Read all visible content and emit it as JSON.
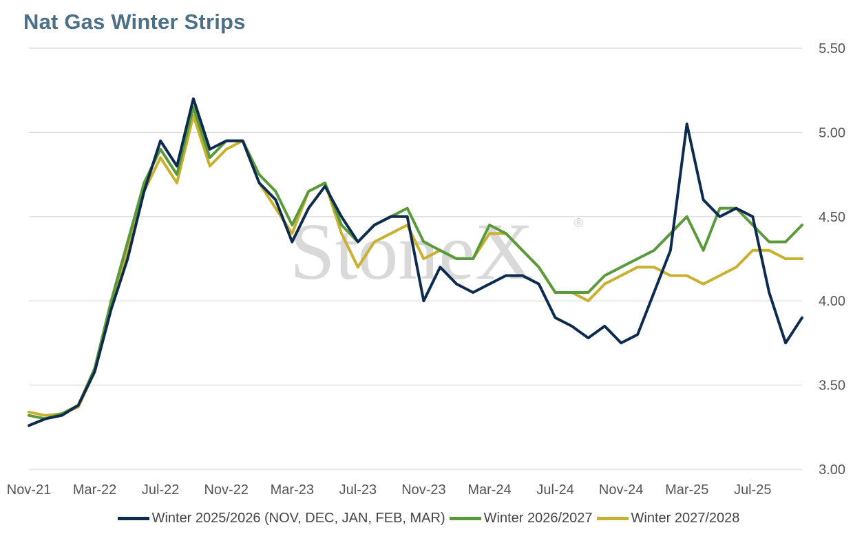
{
  "title": "Nat Gas Winter Strips",
  "watermark": "StoneX",
  "watermark_mark": "®",
  "colors": {
    "series_0": "#0d2b4e",
    "series_1": "#5b9a3c",
    "series_2": "#c8b030",
    "grid": "#d9d9d9",
    "title": "#4c7088"
  },
  "chart_data": {
    "type": "line",
    "title": "Nat Gas Winter Strips",
    "xlabel": "",
    "ylabel": "",
    "ylim": [
      3.0,
      5.5
    ],
    "y_ticks": [
      "3.00",
      "3.50",
      "4.00",
      "4.50",
      "5.00",
      "5.50"
    ],
    "y_axis_side": "right",
    "x_ticks": [
      "Nov-21",
      "Mar-22",
      "Jul-22",
      "Nov-22",
      "Mar-23",
      "Jul-23",
      "Nov-23",
      "Mar-24",
      "Jul-24",
      "Nov-24",
      "Mar-25",
      "Jul-25"
    ],
    "grid": "horizontal",
    "legend_position": "bottom",
    "x": [
      "Nov-21",
      "Dec-21",
      "Jan-22",
      "Feb-22",
      "Mar-22",
      "Apr-22",
      "May-22",
      "Jun-22",
      "Jul-22",
      "Aug-22",
      "Sep-22",
      "Oct-22",
      "Nov-22",
      "Dec-22",
      "Jan-23",
      "Feb-23",
      "Mar-23",
      "Apr-23",
      "May-23",
      "Jun-23",
      "Jul-23",
      "Aug-23",
      "Sep-23",
      "Oct-23",
      "Nov-23",
      "Dec-23",
      "Jan-24",
      "Feb-24",
      "Mar-24",
      "Apr-24",
      "May-24",
      "Jun-24",
      "Jul-24",
      "Aug-24",
      "Sep-24",
      "Oct-24",
      "Nov-24",
      "Dec-24",
      "Jan-25",
      "Feb-25",
      "Mar-25",
      "Apr-25",
      "May-25",
      "Jun-25",
      "Jul-25",
      "Aug-25",
      "Sep-25",
      "Oct-25"
    ],
    "series": [
      {
        "name": "Winter 2025/2026 (NOV, DEC, JAN, FEB, MAR)",
        "values": [
          3.26,
          3.3,
          3.32,
          3.38,
          3.58,
          3.95,
          4.25,
          4.65,
          4.95,
          4.8,
          5.2,
          4.9,
          4.95,
          4.95,
          4.7,
          4.6,
          4.35,
          4.55,
          4.68,
          4.5,
          4.35,
          4.45,
          4.5,
          4.5,
          4.0,
          4.2,
          4.1,
          4.05,
          4.1,
          4.15,
          4.15,
          4.1,
          3.9,
          3.85,
          3.78,
          3.85,
          3.75,
          3.8,
          4.05,
          4.3,
          5.05,
          4.6,
          4.5,
          4.55,
          4.5,
          4.05,
          3.75,
          3.9
        ]
      },
      {
        "name": "Winter 2026/2027",
        "values": [
          3.32,
          3.3,
          3.33,
          3.38,
          3.6,
          4.0,
          4.35,
          4.7,
          4.9,
          4.75,
          5.15,
          4.85,
          4.95,
          4.95,
          4.75,
          4.65,
          4.45,
          4.65,
          4.7,
          4.45,
          4.35,
          4.45,
          4.5,
          4.55,
          4.35,
          4.3,
          4.25,
          4.25,
          4.45,
          4.4,
          4.3,
          4.2,
          4.05,
          4.05,
          4.05,
          4.15,
          4.2,
          4.25,
          4.3,
          4.4,
          4.5,
          4.3,
          4.55,
          4.55,
          4.45,
          4.35,
          4.35,
          4.45
        ]
      },
      {
        "name": "Winter 2027/2028",
        "values": [
          3.34,
          3.32,
          3.33,
          3.37,
          3.58,
          4.0,
          4.3,
          4.65,
          4.85,
          4.7,
          5.1,
          4.8,
          4.9,
          4.95,
          4.7,
          4.55,
          4.4,
          4.65,
          4.7,
          4.4,
          4.2,
          4.35,
          4.4,
          4.45,
          4.25,
          4.3,
          4.25,
          4.25,
          4.4,
          4.4,
          4.3,
          4.2,
          4.05,
          4.05,
          4.0,
          4.1,
          4.15,
          4.2,
          4.2,
          4.15,
          4.15,
          4.1,
          4.15,
          4.2,
          4.3,
          4.3,
          4.25,
          4.25
        ]
      }
    ]
  }
}
